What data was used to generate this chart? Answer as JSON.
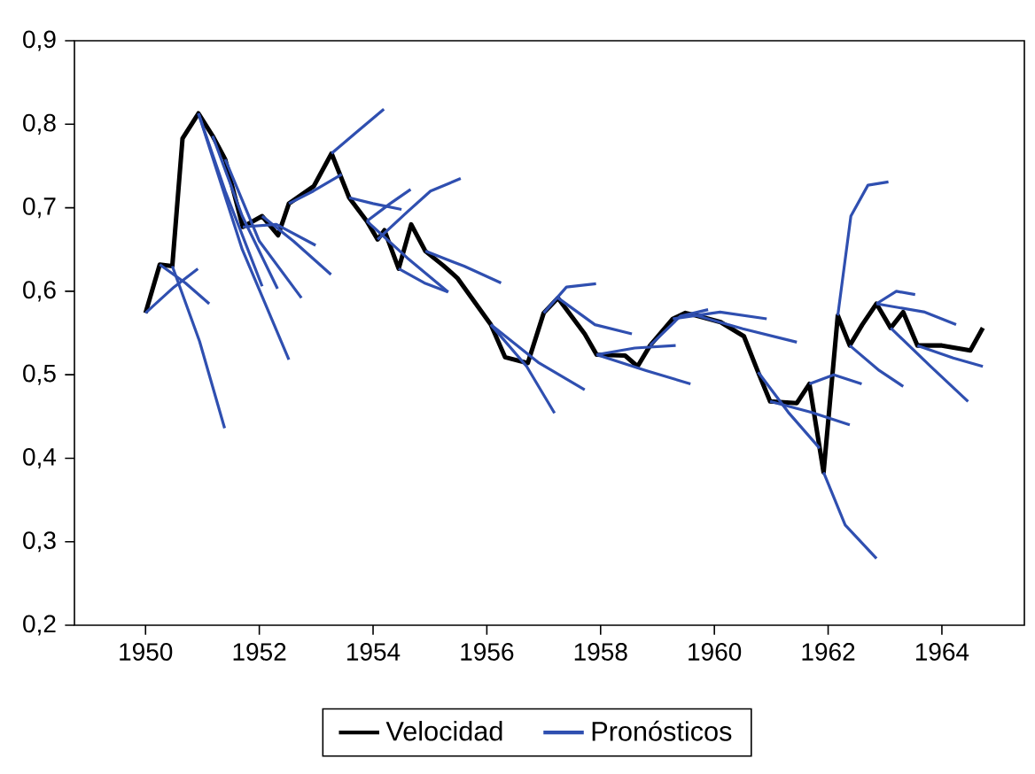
{
  "chart_data": {
    "type": "line",
    "xlim": [
      1948.75,
      1965.45
    ],
    "ylim": [
      0.2,
      0.9
    ],
    "xticks": [
      1950,
      1952,
      1954,
      1956,
      1958,
      1960,
      1962,
      1964
    ],
    "yticks": [
      {
        "value": 0.2,
        "label": "0,2"
      },
      {
        "value": 0.3,
        "label": "0,3"
      },
      {
        "value": 0.4,
        "label": "0,4"
      },
      {
        "value": 0.5,
        "label": "0,5"
      },
      {
        "value": 0.6,
        "label": "0,6"
      },
      {
        "value": 0.7,
        "label": "0,7"
      },
      {
        "value": 0.8,
        "label": "0,8"
      },
      {
        "value": 0.9,
        "label": "0,9"
      }
    ],
    "legend": "bottom",
    "marker": "none",
    "line_style": "solid",
    "grid": false,
    "series": [
      {
        "name": "Velocidad",
        "color": "#000000",
        "x": [
          1950.0,
          1950.25,
          1950.47,
          1950.65,
          1950.93,
          1951.18,
          1951.4,
          1951.71,
          1952.05,
          1952.33,
          1952.52,
          1952.96,
          1953.27,
          1953.58,
          1953.89,
          1954.08,
          1954.2,
          1954.45,
          1954.67,
          1954.92,
          1955.23,
          1955.48,
          1956.07,
          1956.32,
          1956.72,
          1957.0,
          1957.25,
          1957.72,
          1957.93,
          1958.43,
          1958.65,
          1958.87,
          1959.27,
          1959.49,
          1959.68,
          1960.11,
          1960.52,
          1960.77,
          1960.98,
          1961.45,
          1961.67,
          1961.92,
          1962.17,
          1962.38,
          1962.6,
          1962.85,
          1963.1,
          1963.32,
          1963.57,
          1964.0,
          1964.5,
          1964.72
        ],
        "values": [
          0.574,
          0.632,
          0.63,
          0.783,
          0.813,
          0.786,
          0.758,
          0.677,
          0.69,
          0.667,
          0.705,
          0.726,
          0.765,
          0.712,
          0.684,
          0.662,
          0.673,
          0.627,
          0.68,
          0.648,
          0.631,
          0.616,
          0.56,
          0.521,
          0.514,
          0.574,
          0.592,
          0.549,
          0.524,
          0.523,
          0.51,
          0.535,
          0.567,
          0.574,
          0.571,
          0.563,
          0.546,
          0.503,
          0.468,
          0.466,
          0.489,
          0.383,
          0.571,
          0.535,
          0.56,
          0.585,
          0.556,
          0.575,
          0.535,
          0.535,
          0.529,
          0.556
        ]
      },
      {
        "name": "Pronósticos",
        "color": "#2f4fb0",
        "x": [
          1950.0,
          1950.5,
          1950.92
        ],
        "values": [
          0.574,
          0.605,
          0.627
        ]
      },
      {
        "color": "#2f4fb0",
        "x": [
          1950.25,
          1950.7,
          1951.12
        ],
        "values": [
          0.632,
          0.61,
          0.585
        ]
      },
      {
        "color": "#2f4fb0",
        "x": [
          1950.47,
          1950.95,
          1951.39
        ],
        "values": [
          0.63,
          0.54,
          0.436
        ]
      },
      {
        "color": "#2f4fb0",
        "x": [
          1950.93,
          1951.7,
          1952.52
        ],
        "values": [
          0.813,
          0.65,
          0.518
        ]
      },
      {
        "color": "#2f4fb0",
        "x": [
          1950.93,
          1951.4,
          1952.05
        ],
        "values": [
          0.813,
          0.72,
          0.606
        ]
      },
      {
        "color": "#2f4fb0",
        "x": [
          1951.18,
          1951.7,
          1952.32
        ],
        "values": [
          0.786,
          0.69,
          0.603
        ]
      },
      {
        "color": "#2f4fb0",
        "x": [
          1951.4,
          1952.0,
          1952.74
        ],
        "values": [
          0.758,
          0.66,
          0.592
        ]
      },
      {
        "color": "#2f4fb0",
        "x": [
          1951.71,
          1952.3,
          1952.99
        ],
        "values": [
          0.677,
          0.68,
          0.655
        ]
      },
      {
        "color": "#2f4fb0",
        "x": [
          1952.05,
          1952.6,
          1953.26
        ],
        "values": [
          0.69,
          0.66,
          0.62
        ]
      },
      {
        "color": "#2f4fb0",
        "x": [
          1952.52,
          1952.95,
          1953.45
        ],
        "values": [
          0.705,
          0.72,
          0.74
        ]
      },
      {
        "color": "#2f4fb0",
        "x": [
          1953.27,
          1953.7,
          1954.19
        ],
        "values": [
          0.765,
          0.79,
          0.818
        ]
      },
      {
        "color": "#2f4fb0",
        "x": [
          1953.58,
          1954.0,
          1954.5
        ],
        "values": [
          0.712,
          0.705,
          0.698
        ]
      },
      {
        "color": "#2f4fb0",
        "x": [
          1953.89,
          1954.6,
          1955.32
        ],
        "values": [
          0.684,
          0.64,
          0.599
        ]
      },
      {
        "color": "#2f4fb0",
        "x": [
          1954.08,
          1954.6,
          1955.01,
          1955.54
        ],
        "values": [
          0.662,
          0.695,
          0.72,
          0.735
        ]
      },
      {
        "color": "#2f4fb0",
        "x": [
          1953.89,
          1954.3,
          1954.66
        ],
        "values": [
          0.684,
          0.705,
          0.722
        ]
      },
      {
        "color": "#2f4fb0",
        "x": [
          1954.45,
          1954.9,
          1955.32
        ],
        "values": [
          0.627,
          0.61,
          0.599
        ]
      },
      {
        "color": "#2f4fb0",
        "x": [
          1954.92,
          1955.6,
          1956.25
        ],
        "values": [
          0.648,
          0.63,
          0.61
        ]
      },
      {
        "color": "#2f4fb0",
        "x": [
          1956.07,
          1956.7,
          1957.19
        ],
        "values": [
          0.56,
          0.51,
          0.454
        ]
      },
      {
        "color": "#2f4fb0",
        "x": [
          1956.07,
          1956.9,
          1957.72
        ],
        "values": [
          0.56,
          0.515,
          0.482
        ]
      },
      {
        "color": "#2f4fb0",
        "x": [
          1957.0,
          1957.4,
          1957.92
        ],
        "values": [
          0.574,
          0.605,
          0.609
        ]
      },
      {
        "color": "#2f4fb0",
        "x": [
          1957.25,
          1957.9,
          1958.55
        ],
        "values": [
          0.592,
          0.56,
          0.549
        ]
      },
      {
        "color": "#2f4fb0",
        "x": [
          1957.93,
          1958.6,
          1959.32
        ],
        "values": [
          0.524,
          0.532,
          0.535
        ]
      },
      {
        "color": "#2f4fb0",
        "x": [
          1957.93,
          1958.8,
          1959.58
        ],
        "values": [
          0.524,
          0.505,
          0.489
        ]
      },
      {
        "color": "#2f4fb0",
        "x": [
          1958.87,
          1959.4,
          1959.89
        ],
        "values": [
          0.535,
          0.57,
          0.578
        ]
      },
      {
        "color": "#2f4fb0",
        "x": [
          1959.27,
          1960.1,
          1960.92
        ],
        "values": [
          0.567,
          0.575,
          0.567
        ]
      },
      {
        "color": "#2f4fb0",
        "x": [
          1959.68,
          1960.5,
          1961.45
        ],
        "values": [
          0.571,
          0.555,
          0.539
        ]
      },
      {
        "color": "#2f4fb0",
        "x": [
          1960.77,
          1961.3,
          1961.85
        ],
        "values": [
          0.503,
          0.455,
          0.412
        ]
      },
      {
        "color": "#2f4fb0",
        "x": [
          1960.98,
          1961.7,
          1962.38
        ],
        "values": [
          0.468,
          0.455,
          0.44
        ]
      },
      {
        "color": "#2f4fb0",
        "x": [
          1961.67,
          1962.1,
          1962.59
        ],
        "values": [
          0.489,
          0.5,
          0.489
        ]
      },
      {
        "color": "#2f4fb0",
        "x": [
          1961.92,
          1962.3,
          1962.85
        ],
        "values": [
          0.383,
          0.32,
          0.28
        ]
      },
      {
        "color": "#2f4fb0",
        "x": [
          1962.17,
          1962.4,
          1962.7,
          1963.06
        ],
        "values": [
          0.571,
          0.69,
          0.727,
          0.731
        ]
      },
      {
        "color": "#2f4fb0",
        "x": [
          1962.38,
          1962.9,
          1963.32
        ],
        "values": [
          0.535,
          0.505,
          0.486
        ]
      },
      {
        "color": "#2f4fb0",
        "x": [
          1962.85,
          1963.2,
          1963.53
        ],
        "values": [
          0.585,
          0.6,
          0.596
        ]
      },
      {
        "color": "#2f4fb0",
        "x": [
          1963.1,
          1963.8,
          1964.46
        ],
        "values": [
          0.556,
          0.51,
          0.468
        ]
      },
      {
        "color": "#2f4fb0",
        "x": [
          1963.57,
          1964.2,
          1964.72
        ],
        "values": [
          0.535,
          0.52,
          0.51
        ]
      },
      {
        "color": "#2f4fb0",
        "x": [
          1962.85,
          1963.7,
          1964.25
        ],
        "values": [
          0.585,
          0.575,
          0.56
        ]
      }
    ]
  }
}
